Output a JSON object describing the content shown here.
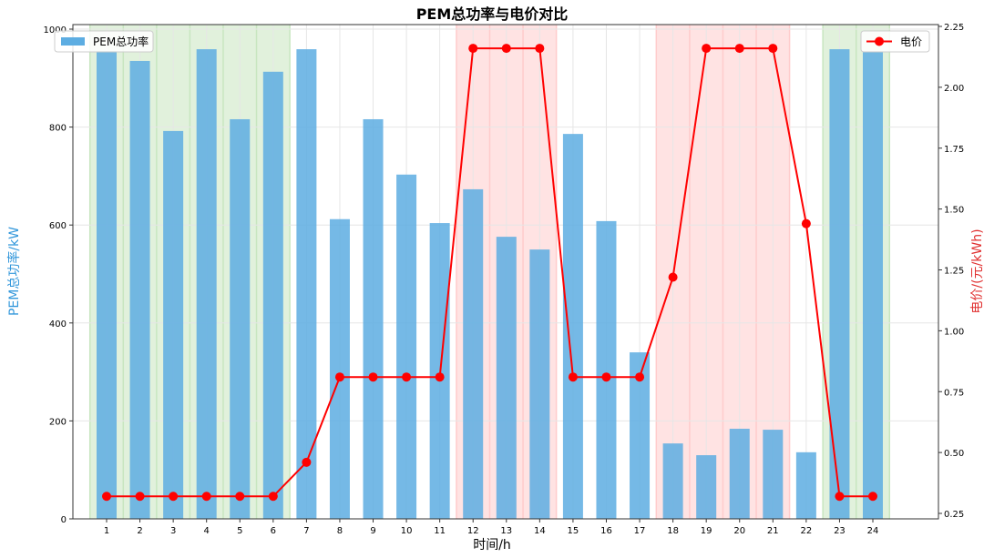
{
  "chart_data": {
    "type": "bar+line",
    "title": "PEM总功率与电价对比",
    "xlabel": "时间/h",
    "ylabel": "PEM总功率/kW",
    "y2label": "电价/(元/kWh)",
    "categories": [
      "1",
      "2",
      "3",
      "4",
      "5",
      "6",
      "7",
      "8",
      "9",
      "10",
      "11",
      "12",
      "13",
      "14",
      "15",
      "16",
      "17",
      "18",
      "19",
      "20",
      "21",
      "22",
      "23",
      "24"
    ],
    "ylim": [
      0,
      1000
    ],
    "yticks": [
      "0",
      "200",
      "400",
      "600",
      "800",
      "1000"
    ],
    "y2lim": [
      0.25,
      2.25
    ],
    "y2ticks": [
      "0.25",
      "0.50",
      "0.75",
      "1.00",
      "1.25",
      "1.50",
      "1.75",
      "2.00",
      "2.25"
    ],
    "series": [
      {
        "name": "PEM总功率",
        "type": "bar",
        "color": "#5dade2",
        "values": [
          955,
          935,
          792,
          959,
          816,
          913,
          959,
          612,
          816,
          703,
          604,
          673,
          576,
          550,
          786,
          608,
          340,
          154,
          130,
          184,
          182,
          136,
          959,
          953
        ]
      },
      {
        "name": "电价",
        "type": "line",
        "color": "#ff0000",
        "values": [
          0.32,
          0.32,
          0.32,
          0.32,
          0.32,
          0.32,
          0.46,
          0.81,
          0.81,
          0.81,
          0.81,
          2.16,
          2.16,
          2.16,
          0.81,
          0.81,
          0.81,
          1.22,
          2.16,
          2.16,
          2.16,
          1.44,
          0.32,
          0.32
        ]
      }
    ],
    "shaded_regions": [
      {
        "from": 1,
        "to": 6,
        "color": "#c8e6c0",
        "meaning": "valley"
      },
      {
        "from": 12,
        "to": 14,
        "color": "#ffcccc",
        "meaning": "peak"
      },
      {
        "from": 18,
        "to": 21,
        "color": "#ffcccc",
        "meaning": "peak"
      },
      {
        "from": 23,
        "to": 24,
        "color": "#c8e6c0",
        "meaning": "valley"
      }
    ],
    "grid": true,
    "legend": [
      {
        "position": "top-left",
        "label": "PEM总功率"
      },
      {
        "position": "top-right",
        "label": "电价"
      }
    ]
  }
}
